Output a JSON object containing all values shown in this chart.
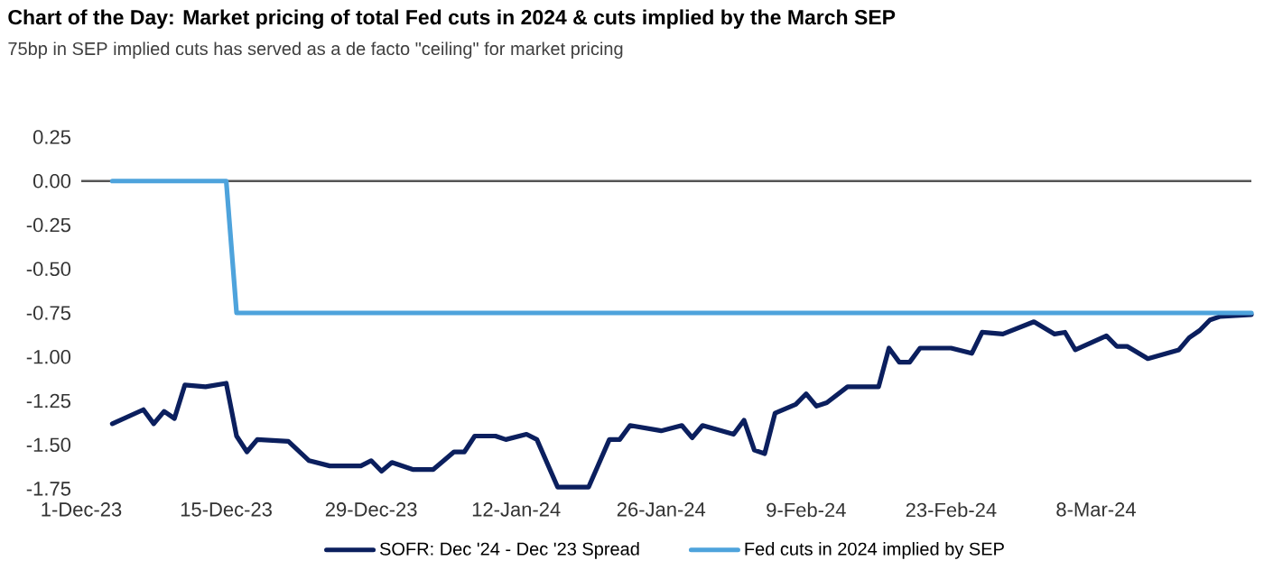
{
  "chart_data": {
    "type": "line",
    "title": "Chart of the Day: Market pricing of total Fed cuts in 2024 & cuts implied by the March SEP",
    "subtitle": "75bp in SEP implied cuts has served as a de facto \"ceiling\" for market pricing",
    "xlim": [
      "2023-12-01",
      "2024-03-23"
    ],
    "xticks": [
      {
        "value": "2023-12-01",
        "label": "1-Dec-23"
      },
      {
        "value": "2023-12-15",
        "label": "15-Dec-23"
      },
      {
        "value": "2023-12-29",
        "label": "29-Dec-23"
      },
      {
        "value": "2024-01-12",
        "label": "12-Jan-24"
      },
      {
        "value": "2024-01-26",
        "label": "26-Jan-24"
      },
      {
        "value": "2024-02-09",
        "label": "9-Feb-24"
      },
      {
        "value": "2024-02-23",
        "label": "23-Feb-24"
      },
      {
        "value": "2024-03-08",
        "label": "8-Mar-24"
      }
    ],
    "ylim": [
      -1.75,
      0.25
    ],
    "yticks": [
      {
        "value": 0.25,
        "label": "0.25"
      },
      {
        "value": 0,
        "label": "0.00"
      },
      {
        "value": -0.25,
        "label": "-0.25"
      },
      {
        "value": -0.5,
        "label": "-0.50"
      },
      {
        "value": -0.75,
        "label": "-0.75"
      },
      {
        "value": -1,
        "label": "-1.00"
      },
      {
        "value": -1.25,
        "label": "-1.25"
      },
      {
        "value": -1.5,
        "label": "-1.50"
      },
      {
        "value": -1.75,
        "label": "-1.75"
      }
    ],
    "ref_lines": [
      {
        "axis": "y",
        "value": 0,
        "color": "#555555"
      }
    ],
    "legend": "bottom",
    "series": [
      {
        "name": "SOFR: Dec '24 - Dec '23 Spread",
        "color": "#0b1f5e",
        "x": [
          "2023-12-04",
          "2023-12-07",
          "2023-12-08",
          "2023-12-09",
          "2023-12-10",
          "2023-12-11",
          "2023-12-13",
          "2023-12-15",
          "2023-12-16",
          "2023-12-17",
          "2023-12-18",
          "2023-12-21",
          "2023-12-23",
          "2023-12-25",
          "2023-12-28",
          "2023-12-29",
          "2023-12-30",
          "2023-12-31",
          "2024-01-02",
          "2024-01-04",
          "2024-01-06",
          "2024-01-07",
          "2024-01-08",
          "2024-01-10",
          "2024-01-11",
          "2024-01-13",
          "2024-01-14",
          "2024-01-16",
          "2024-01-19",
          "2024-01-21",
          "2024-01-22",
          "2024-01-23",
          "2024-01-26",
          "2024-01-28",
          "2024-01-29",
          "2024-01-30",
          "2024-02-02",
          "2024-02-03",
          "2024-02-04",
          "2024-02-05",
          "2024-02-06",
          "2024-02-08",
          "2024-02-09",
          "2024-02-10",
          "2024-02-11",
          "2024-02-13",
          "2024-02-16",
          "2024-02-17",
          "2024-02-18",
          "2024-02-19",
          "2024-02-20",
          "2024-02-23",
          "2024-02-25",
          "2024-02-26",
          "2024-02-28",
          "2024-03-02",
          "2024-03-04",
          "2024-03-05",
          "2024-03-06",
          "2024-03-09",
          "2024-03-10",
          "2024-03-11",
          "2024-03-13",
          "2024-03-16",
          "2024-03-17",
          "2024-03-18",
          "2024-03-19",
          "2024-03-20",
          "2024-03-23"
        ],
        "values": [
          -1.38,
          -1.3,
          -1.38,
          -1.31,
          -1.35,
          -1.16,
          -1.17,
          -1.15,
          -1.45,
          -1.54,
          -1.47,
          -1.48,
          -1.59,
          -1.62,
          -1.62,
          -1.59,
          -1.65,
          -1.6,
          -1.64,
          -1.64,
          -1.54,
          -1.54,
          -1.45,
          -1.45,
          -1.47,
          -1.44,
          -1.47,
          -1.74,
          -1.74,
          -1.47,
          -1.47,
          -1.39,
          -1.42,
          -1.39,
          -1.46,
          -1.39,
          -1.44,
          -1.36,
          -1.53,
          -1.55,
          -1.32,
          -1.27,
          -1.21,
          -1.28,
          -1.26,
          -1.17,
          -1.17,
          -0.95,
          -1.03,
          -1.03,
          -0.95,
          -0.95,
          -0.98,
          -0.86,
          -0.87,
          -0.8,
          -0.87,
          -0.86,
          -0.96,
          -0.88,
          -0.94,
          -0.94,
          -1.01,
          -0.96,
          -0.89,
          -0.85,
          -0.79,
          -0.77,
          -0.76
        ]
      },
      {
        "name": "Fed cuts in 2024 implied by SEP",
        "color": "#4ea3dc",
        "x": [
          "2023-12-04",
          "2023-12-15",
          "2023-12-16",
          "2024-03-23"
        ],
        "values": [
          0,
          0,
          -0.75,
          -0.75
        ]
      }
    ]
  }
}
